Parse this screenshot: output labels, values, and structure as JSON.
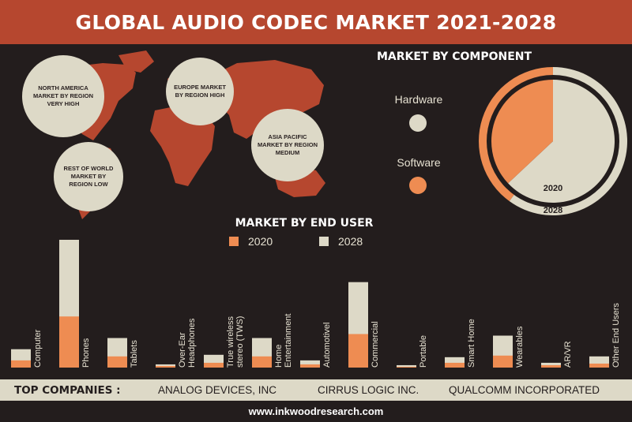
{
  "title": "GLOBAL AUDIO CODEC MARKET 2021-2028",
  "regions": [
    {
      "label": "NORTH AMERICA MARKET BY REGION VERY HIGH"
    },
    {
      "label": "EUROPE MARKET BY REGION HIGH"
    },
    {
      "label": "ASIA PACIFIC MARKET BY REGION MEDIUM"
    },
    {
      "label": "REST OF WORLD MARKET BY REGION LOW"
    }
  ],
  "component": {
    "title": "MARKET BY COMPONENT",
    "legend": [
      "Hardware",
      "Software"
    ],
    "year_inner": "2020",
    "year_outer": "2028"
  },
  "end_user": {
    "title": "MARKET BY END USER",
    "legend": [
      "2020",
      "2028"
    ]
  },
  "colors": {
    "orange": "#ee8c52",
    "cream": "#ddd9c7",
    "red": "#b6472f",
    "background": "#231d1d"
  },
  "chart_data": [
    {
      "type": "pie",
      "title": "MARKET BY COMPONENT",
      "rings": [
        {
          "name": "2020",
          "slices": [
            {
              "label": "Hardware",
              "value": 63
            },
            {
              "label": "Software",
              "value": 37
            }
          ]
        },
        {
          "name": "2028",
          "slices": [
            {
              "label": "Hardware",
              "value": 60
            },
            {
              "label": "Software",
              "value": 40
            }
          ]
        }
      ]
    },
    {
      "type": "bar",
      "title": "MARKET BY END USER",
      "categories": [
        "Computer",
        "Phones",
        "Tablets",
        "Over-Ear Headphones",
        "True wireless stereo (TWS)",
        "Home Entertainment",
        "Automotivel",
        "Commercial",
        "Portable",
        "Smart Home",
        "Wearables",
        "AR/VR",
        "Other End Users"
      ],
      "series": [
        {
          "name": "2020",
          "values": [
            9,
            64,
            14,
            2,
            6,
            14,
            4,
            42,
            1,
            6,
            15,
            3,
            5
          ]
        },
        {
          "name": "2028",
          "values": [
            23,
            160,
            37,
            4,
            16,
            37,
            9,
            107,
            3,
            13,
            40,
            6,
            14
          ]
        }
      ],
      "stacked": false
    }
  ],
  "footer": {
    "lead": "TOP COMPANIES :",
    "companies": [
      "ANALOG DEVICES, INC",
      "CIRRUS LOGIC INC.",
      "QUALCOMM INCORPORATED"
    ],
    "website": "www.inkwoodresearch.com"
  }
}
